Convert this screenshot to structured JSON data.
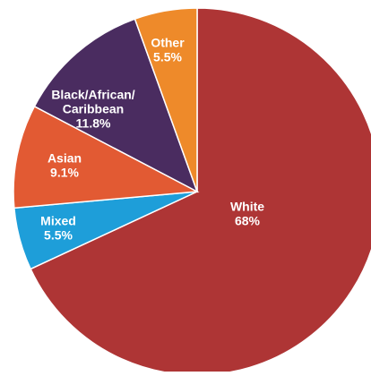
{
  "chart_data": {
    "type": "pie",
    "title": "",
    "slices": [
      {
        "category": "White",
        "value": 68,
        "value_label": "68%",
        "color": "#AE3535",
        "label_lines": [
          "White"
        ]
      },
      {
        "category": "Mixed",
        "value": 5.5,
        "value_label": "5.5%",
        "color": "#1E9ED9",
        "label_lines": [
          "Mixed"
        ]
      },
      {
        "category": "Asian",
        "value": 9.1,
        "value_label": "9.1%",
        "color": "#E25A33",
        "label_lines": [
          "Asian"
        ]
      },
      {
        "category": "Black/African/Caribbean",
        "value": 11.8,
        "value_label": "11.8%",
        "color": "#4A2C60",
        "label_lines": [
          "Black/African/",
          "Caribbean"
        ]
      },
      {
        "category": "Other",
        "value": 5.5,
        "value_label": "5.5%",
        "color": "#EE8A2A",
        "label_lines": [
          "Other"
        ]
      }
    ],
    "start_angle": "12 o'clock",
    "direction": "clockwise",
    "legend": "none",
    "labels": "inside"
  }
}
